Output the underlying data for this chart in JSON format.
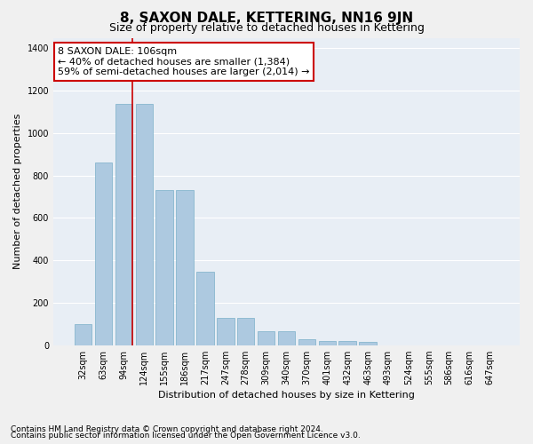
{
  "title": "8, SAXON DALE, KETTERING, NN16 9JN",
  "subtitle": "Size of property relative to detached houses in Kettering",
  "xlabel": "Distribution of detached houses by size in Kettering",
  "ylabel": "Number of detached properties",
  "footnote1": "Contains HM Land Registry data © Crown copyright and database right 2024.",
  "footnote2": "Contains public sector information licensed under the Open Government Licence v3.0.",
  "categories": [
    "32sqm",
    "63sqm",
    "94sqm",
    "124sqm",
    "155sqm",
    "186sqm",
    "217sqm",
    "247sqm",
    "278sqm",
    "309sqm",
    "340sqm",
    "370sqm",
    "401sqm",
    "432sqm",
    "463sqm",
    "493sqm",
    "524sqm",
    "555sqm",
    "586sqm",
    "616sqm",
    "647sqm"
  ],
  "values": [
    100,
    860,
    1140,
    1140,
    730,
    730,
    345,
    130,
    130,
    65,
    65,
    30,
    20,
    20,
    15,
    0,
    0,
    0,
    0,
    0,
    0
  ],
  "bar_color": "#adc9e0",
  "bar_edge_color": "#7aafc8",
  "highlight_bar_index": 2,
  "highlight_color": "#cc0000",
  "ylim": [
    0,
    1450
  ],
  "yticks": [
    0,
    200,
    400,
    600,
    800,
    1000,
    1200,
    1400
  ],
  "annotation_text": "8 SAXON DALE: 106sqm\n← 40% of detached houses are smaller (1,384)\n59% of semi-detached houses are larger (2,014) →",
  "annotation_box_color": "#ffffff",
  "annotation_box_edge": "#cc0000",
  "background_color": "#e8eef5",
  "grid_color": "#ffffff",
  "fig_background": "#f0f0f0",
  "title_fontsize": 11,
  "subtitle_fontsize": 9,
  "axis_label_fontsize": 8,
  "tick_fontsize": 7,
  "annotation_fontsize": 8,
  "footnote_fontsize": 6.5
}
